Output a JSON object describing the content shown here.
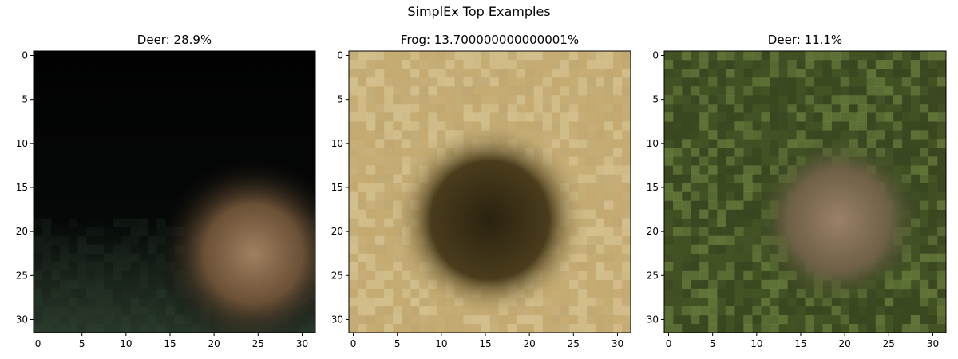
{
  "suptitle": "SimplEx Top Examples",
  "chart_data": [
    {
      "type": "heatmap",
      "title": "Deer: 28.9%",
      "x_ticks": [
        0,
        5,
        10,
        15,
        20,
        25,
        30
      ],
      "y_ticks": [
        0,
        5,
        10,
        15,
        20,
        25,
        30
      ],
      "xlim": [
        -0.5,
        31.5
      ],
      "ylim": [
        31.5,
        -0.5
      ],
      "image_grid": "32x32",
      "scene": "dark night background, small brown deer grazing lower right, dark grass at bottom"
    },
    {
      "type": "heatmap",
      "title": "Frog: 13.700000000000001%",
      "x_ticks": [
        0,
        5,
        10,
        15,
        20,
        25,
        30
      ],
      "y_ticks": [
        0,
        5,
        10,
        15,
        20,
        25,
        30
      ],
      "xlim": [
        -0.5,
        31.5
      ],
      "ylim": [
        31.5,
        -0.5
      ],
      "image_grid": "32x32",
      "scene": "tan and yellow mottled texture with dark brown blotch in center"
    },
    {
      "type": "heatmap",
      "title": "Deer: 11.1%",
      "x_ticks": [
        0,
        5,
        10,
        15,
        20,
        25,
        30
      ],
      "y_ticks": [
        0,
        5,
        10,
        15,
        20,
        25,
        30
      ],
      "xlim": [
        -0.5,
        31.5
      ],
      "ylim": [
        31.5,
        -0.5
      ],
      "image_grid": "32x32",
      "scene": "green foliage background with light brown deer standing center right"
    }
  ],
  "colors": {
    "axis": "#000000",
    "background": "#ffffff"
  }
}
